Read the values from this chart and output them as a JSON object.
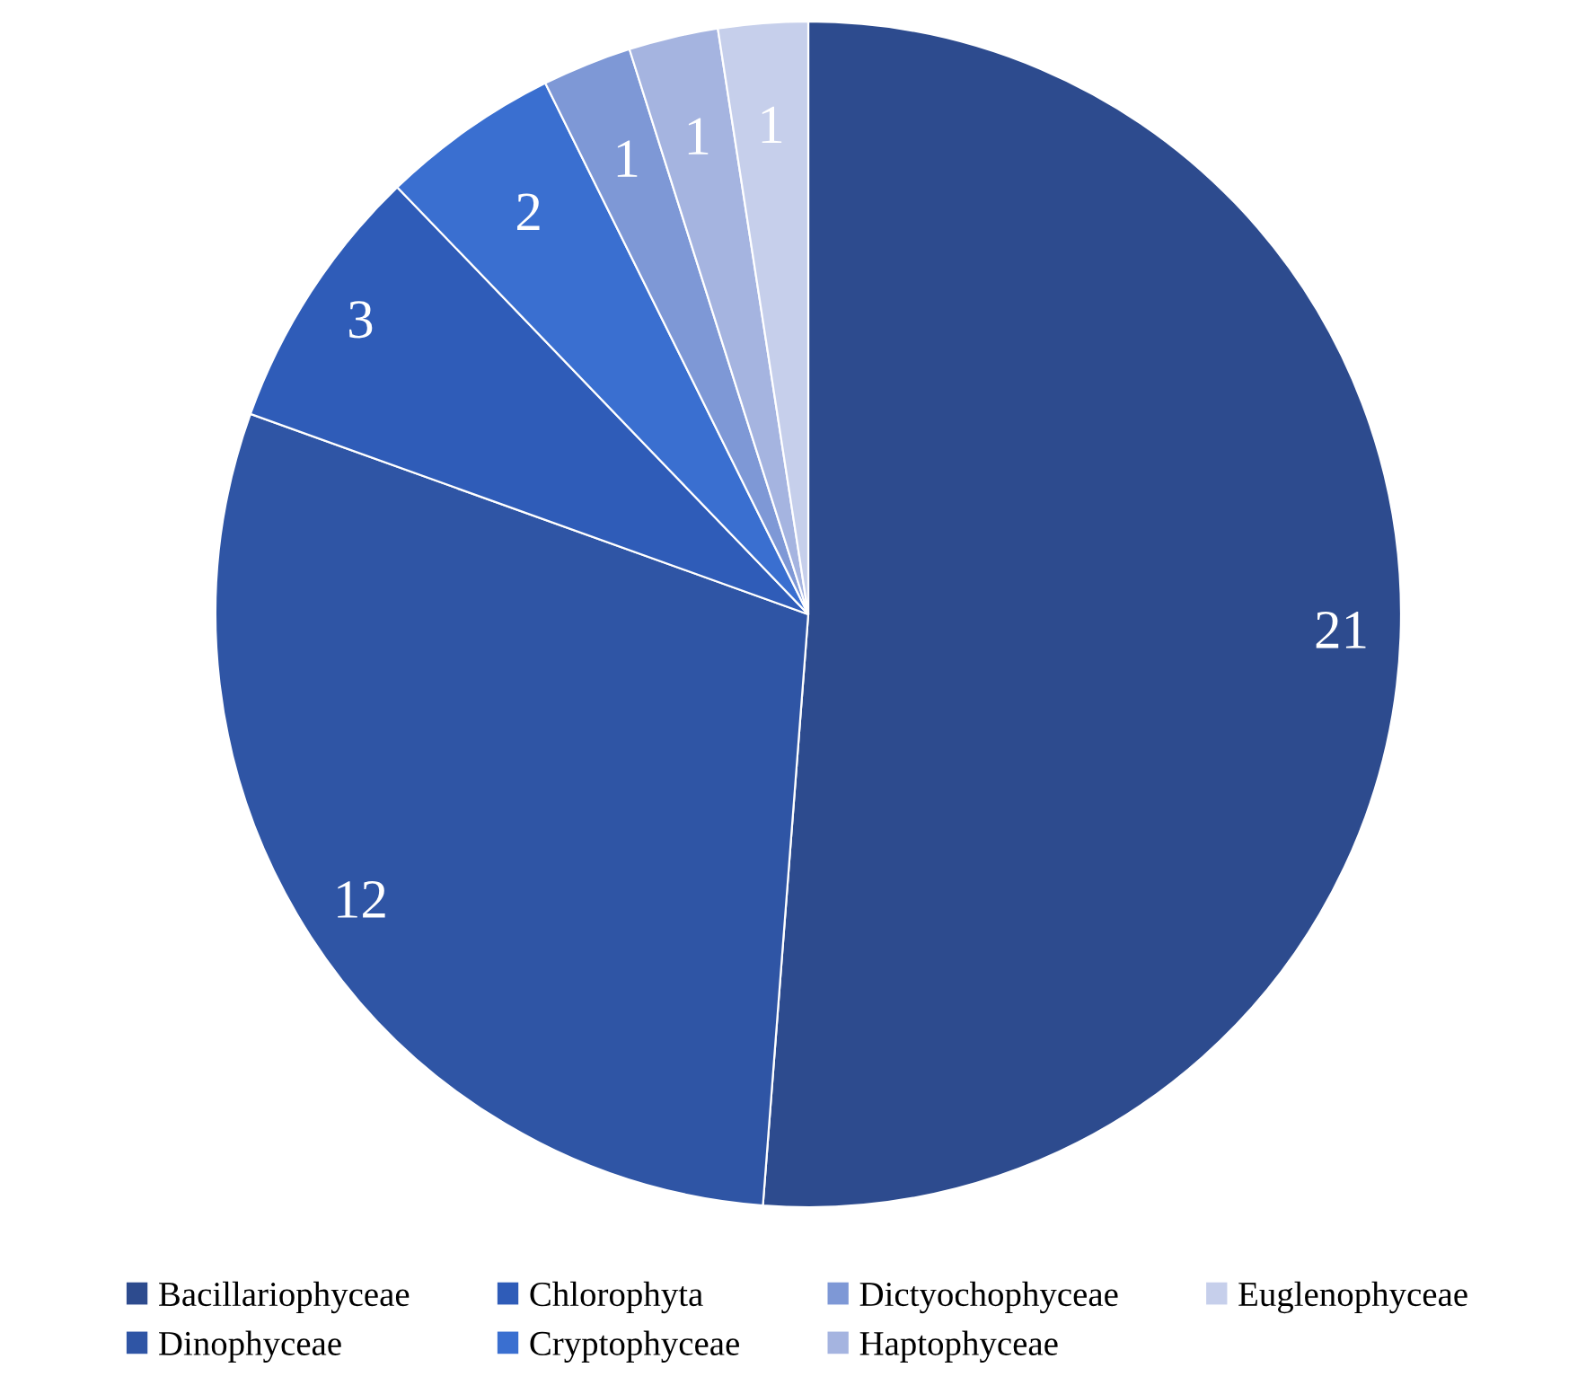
{
  "chart_data": {
    "type": "pie",
    "categories": [
      "Bacillariophyceae",
      "Dinophyceae",
      "Chlorophyta",
      "Cryptophyceae",
      "Dictyochophyceae",
      "Haptophyceae",
      "Euglenophyceae"
    ],
    "values": [
      21,
      12,
      3,
      2,
      1,
      1,
      1
    ],
    "colors": [
      "#2d4b8e",
      "#2f55a5",
      "#2f5cb8",
      "#3a6fd0",
      "#7e98d6",
      "#a5b4e0",
      "#c6cfeb"
    ],
    "data_labels": true,
    "legend": "bottom"
  }
}
